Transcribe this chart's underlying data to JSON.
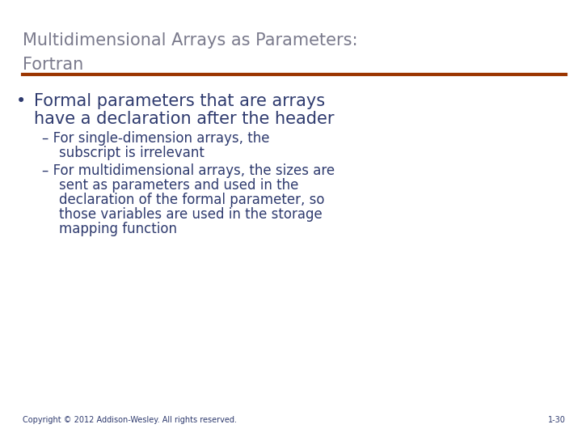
{
  "bg_color": "#ffffff",
  "title_line1": "Multidimensional Arrays as Parameters:",
  "title_line2": "Fortran",
  "title_color": "#7a7a8c",
  "title_fontsize": 15,
  "rule_color": "#9b3500",
  "bullet_color": "#2E3A6E",
  "bullet1_fontsize": 15,
  "sub_bullet_fontsize": 12,
  "bullet1_text_line1": "Formal parameters that are arrays",
  "bullet1_text_line2": "have a declaration after the header",
  "sub1_line1": "– For single-dimension arrays, the",
  "sub1_line2": "    subscript is irrelevant",
  "sub2_line1": "– For multidimensional arrays, the sizes are",
  "sub2_line2": "    sent as parameters and used in the",
  "sub2_line3": "    declaration of the formal parameter, so",
  "sub2_line4": "    those variables are used in the storage",
  "sub2_line5": "    mapping function",
  "footer_text": "Copyright © 2012 Addison-Wesley. All rights reserved.",
  "footer_right": "1-30",
  "footer_color": "#2E3A6E",
  "footer_fontsize": 7
}
